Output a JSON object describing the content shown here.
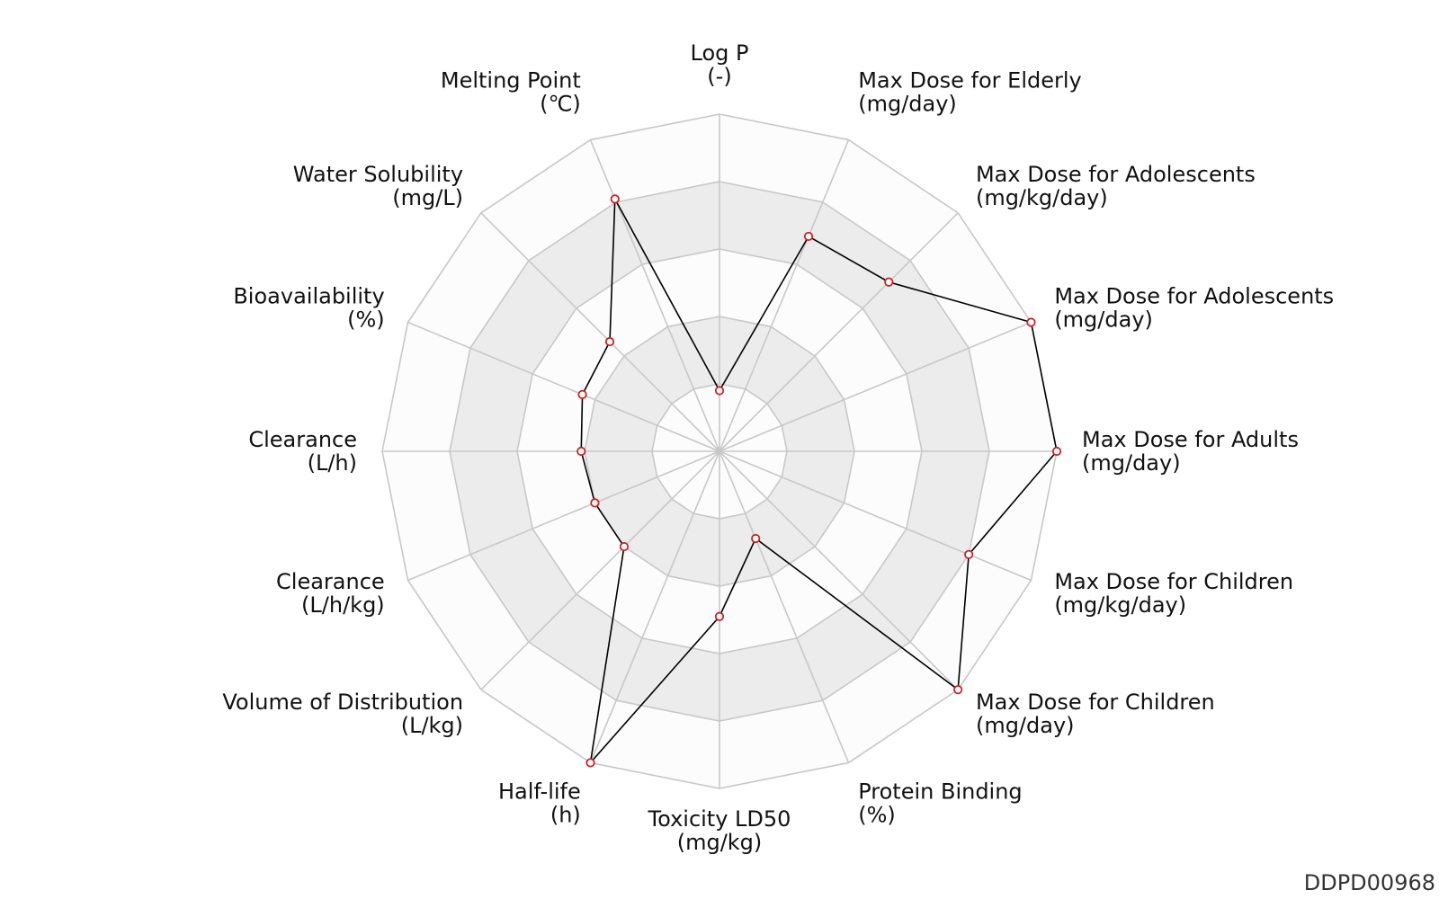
{
  "chart_data": {
    "type": "radar",
    "axes": [
      {
        "name": "Log P",
        "unit": "(-)"
      },
      {
        "name": "Max Dose for Elderly",
        "unit": "(mg/day)"
      },
      {
        "name": "Max Dose for Adolescents",
        "unit": "(mg/kg/day)"
      },
      {
        "name": "Max Dose for Adolescents",
        "unit": "(mg/day)"
      },
      {
        "name": "Max Dose for Adults",
        "unit": "(mg/day)"
      },
      {
        "name": "Max Dose for Children",
        "unit": "(mg/kg/day)"
      },
      {
        "name": "Max Dose for Children",
        "unit": "(mg/day)"
      },
      {
        "name": "Protein Binding",
        "unit": "(%)"
      },
      {
        "name": "Toxicity LD50",
        "unit": "(mg/kg)"
      },
      {
        "name": "Half-life",
        "unit": "(h)"
      },
      {
        "name": "Volume of Distribution",
        "unit": "(L/kg)"
      },
      {
        "name": "Clearance",
        "unit": "(L/h/kg)"
      },
      {
        "name": "Clearance",
        "unit": "(L/h)"
      },
      {
        "name": "Bioavailability",
        "unit": "(%)"
      },
      {
        "name": "Water Solubility",
        "unit": "(mg/L)"
      },
      {
        "name": "Melting Point",
        "unit": "(℃)"
      }
    ],
    "values": [
      0.18,
      0.69,
      0.71,
      1.0,
      1.0,
      0.8,
      1.0,
      0.28,
      0.49,
      1.0,
      0.4,
      0.4,
      0.41,
      0.44,
      0.46,
      0.81
    ],
    "rlim": [
      0,
      1
    ],
    "rings": 5,
    "grid": true,
    "legend": false,
    "colors": {
      "line": "#000000",
      "marker_edge": "#cc2222",
      "marker_fill": "#ffffff",
      "grid": "#c8c8c8",
      "band_light": "#fcfcfc",
      "band_dark": "#ececec"
    }
  },
  "watermark": "DDPD00968"
}
